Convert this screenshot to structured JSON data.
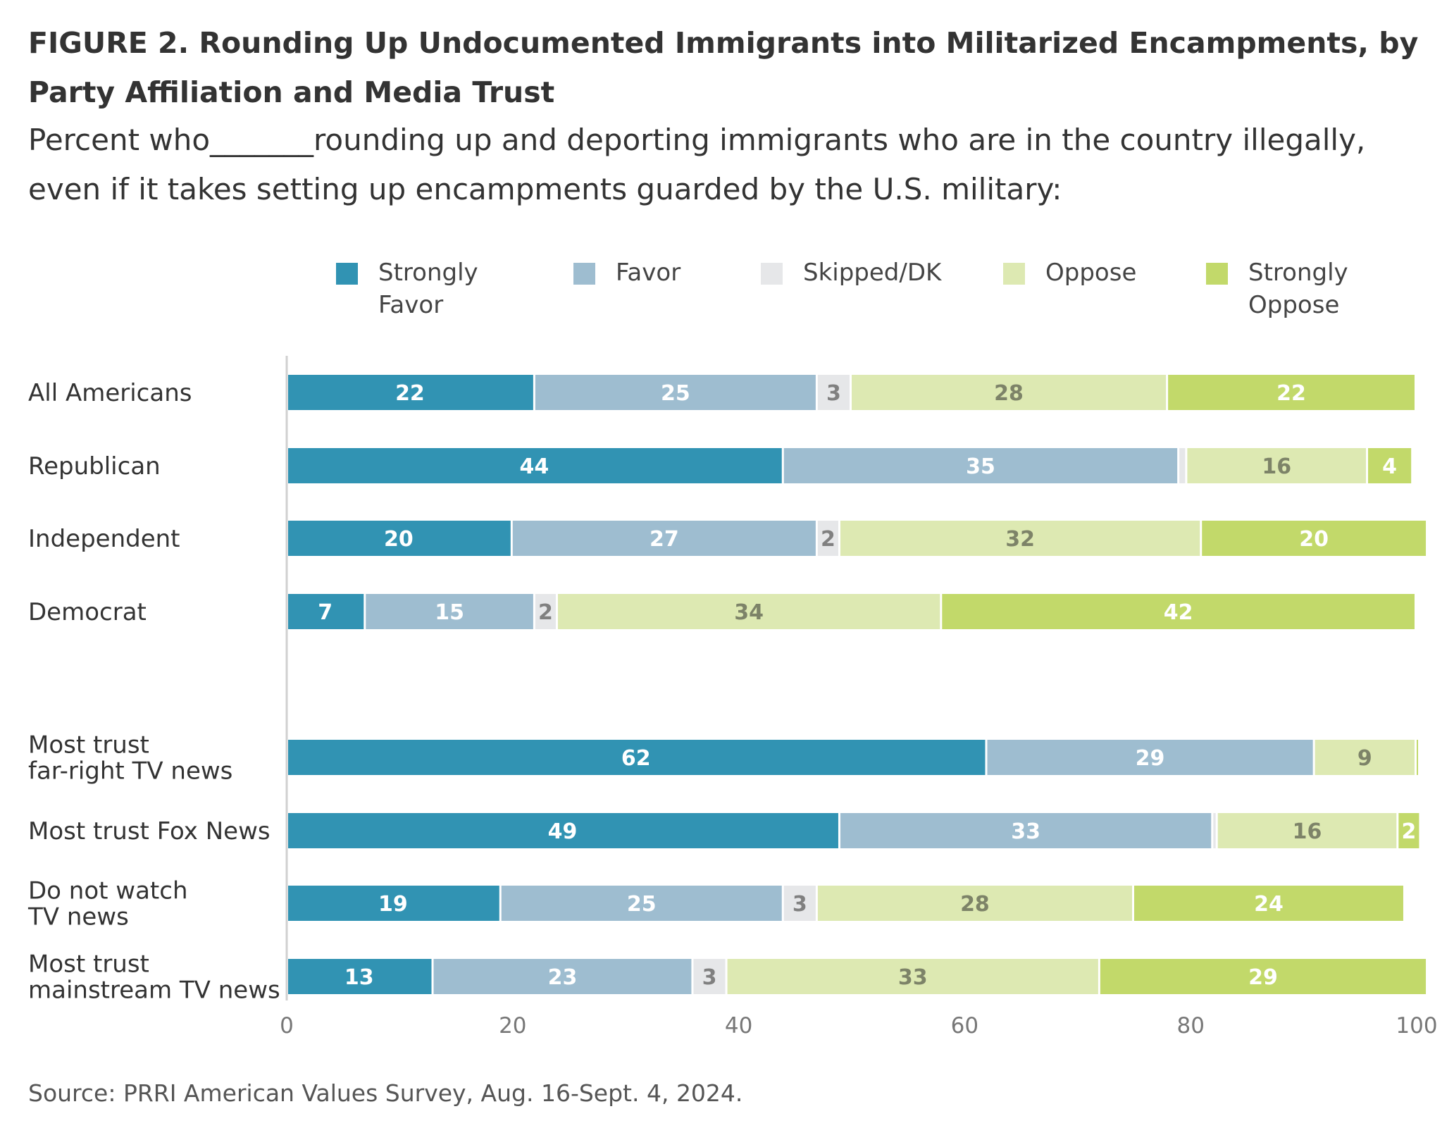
{
  "title": "FIGURE 2.  Rounding Up Undocumented Immigrants into Militarized Encampments, by Party Affiliation and Media Trust",
  "subtitle": "Percent who_______rounding up and deporting immigrants who are in the country illegally, even if it takes setting up encampments guarded by the U.S. military:",
  "source": "Source: PRRI American Values Survey, Aug. 16-Sept. 4, 2024.",
  "chart_data": {
    "type": "bar",
    "orientation": "horizontal",
    "stacked": true,
    "xlim": [
      0,
      100
    ],
    "xticks": [
      0,
      20,
      40,
      60,
      80,
      100
    ],
    "legend_position": "top",
    "categories": [
      "All Americans",
      "Republican",
      "Independent",
      "Democrat",
      "Most trust\nfar-right TV news",
      "Most trust Fox News",
      "Do not watch\nTV news",
      "Most trust\nmainstream TV news"
    ],
    "groups": [
      [
        0,
        1,
        2,
        3
      ],
      [
        4,
        5,
        6,
        7
      ]
    ],
    "series": [
      {
        "name": "Strongly\nFavor",
        "color": "#3193b3",
        "label_color": "#ffffff",
        "values": [
          22,
          44,
          20,
          7,
          62,
          49,
          19,
          13
        ],
        "labels": [
          "22",
          "44",
          "20",
          "7",
          "62",
          "49",
          "19",
          "13"
        ]
      },
      {
        "name": "Favor",
        "color": "#9ebdd0",
        "label_color": "#ffffff",
        "values": [
          25,
          35,
          27,
          15,
          29,
          33,
          25,
          23
        ],
        "labels": [
          "25",
          "35",
          "27",
          "15",
          "29",
          "33",
          "25",
          "23"
        ]
      },
      {
        "name": "Skipped/DK",
        "color": "#e6e7e9",
        "label_color": "#808080",
        "values": [
          3,
          0.7,
          2,
          2,
          0,
          0.4,
          3,
          3
        ],
        "labels": [
          "3",
          "",
          "2",
          "2",
          "",
          "",
          "3",
          "3"
        ]
      },
      {
        "name": "Oppose",
        "color": "#dde9b2",
        "label_color": "#7d8368",
        "values": [
          28,
          16,
          32,
          34,
          9,
          16,
          28,
          33
        ],
        "labels": [
          "28",
          "16",
          "32",
          "34",
          "9",
          "16",
          "28",
          "33"
        ]
      },
      {
        "name": "Strongly\nOppose",
        "color": "#c2d96a",
        "label_color": "#ffffff",
        "values": [
          22,
          4,
          20,
          42,
          0.3,
          2,
          24,
          29
        ],
        "labels": [
          "22",
          "4",
          "20",
          "42",
          "",
          "2",
          "24",
          "29"
        ]
      }
    ]
  }
}
